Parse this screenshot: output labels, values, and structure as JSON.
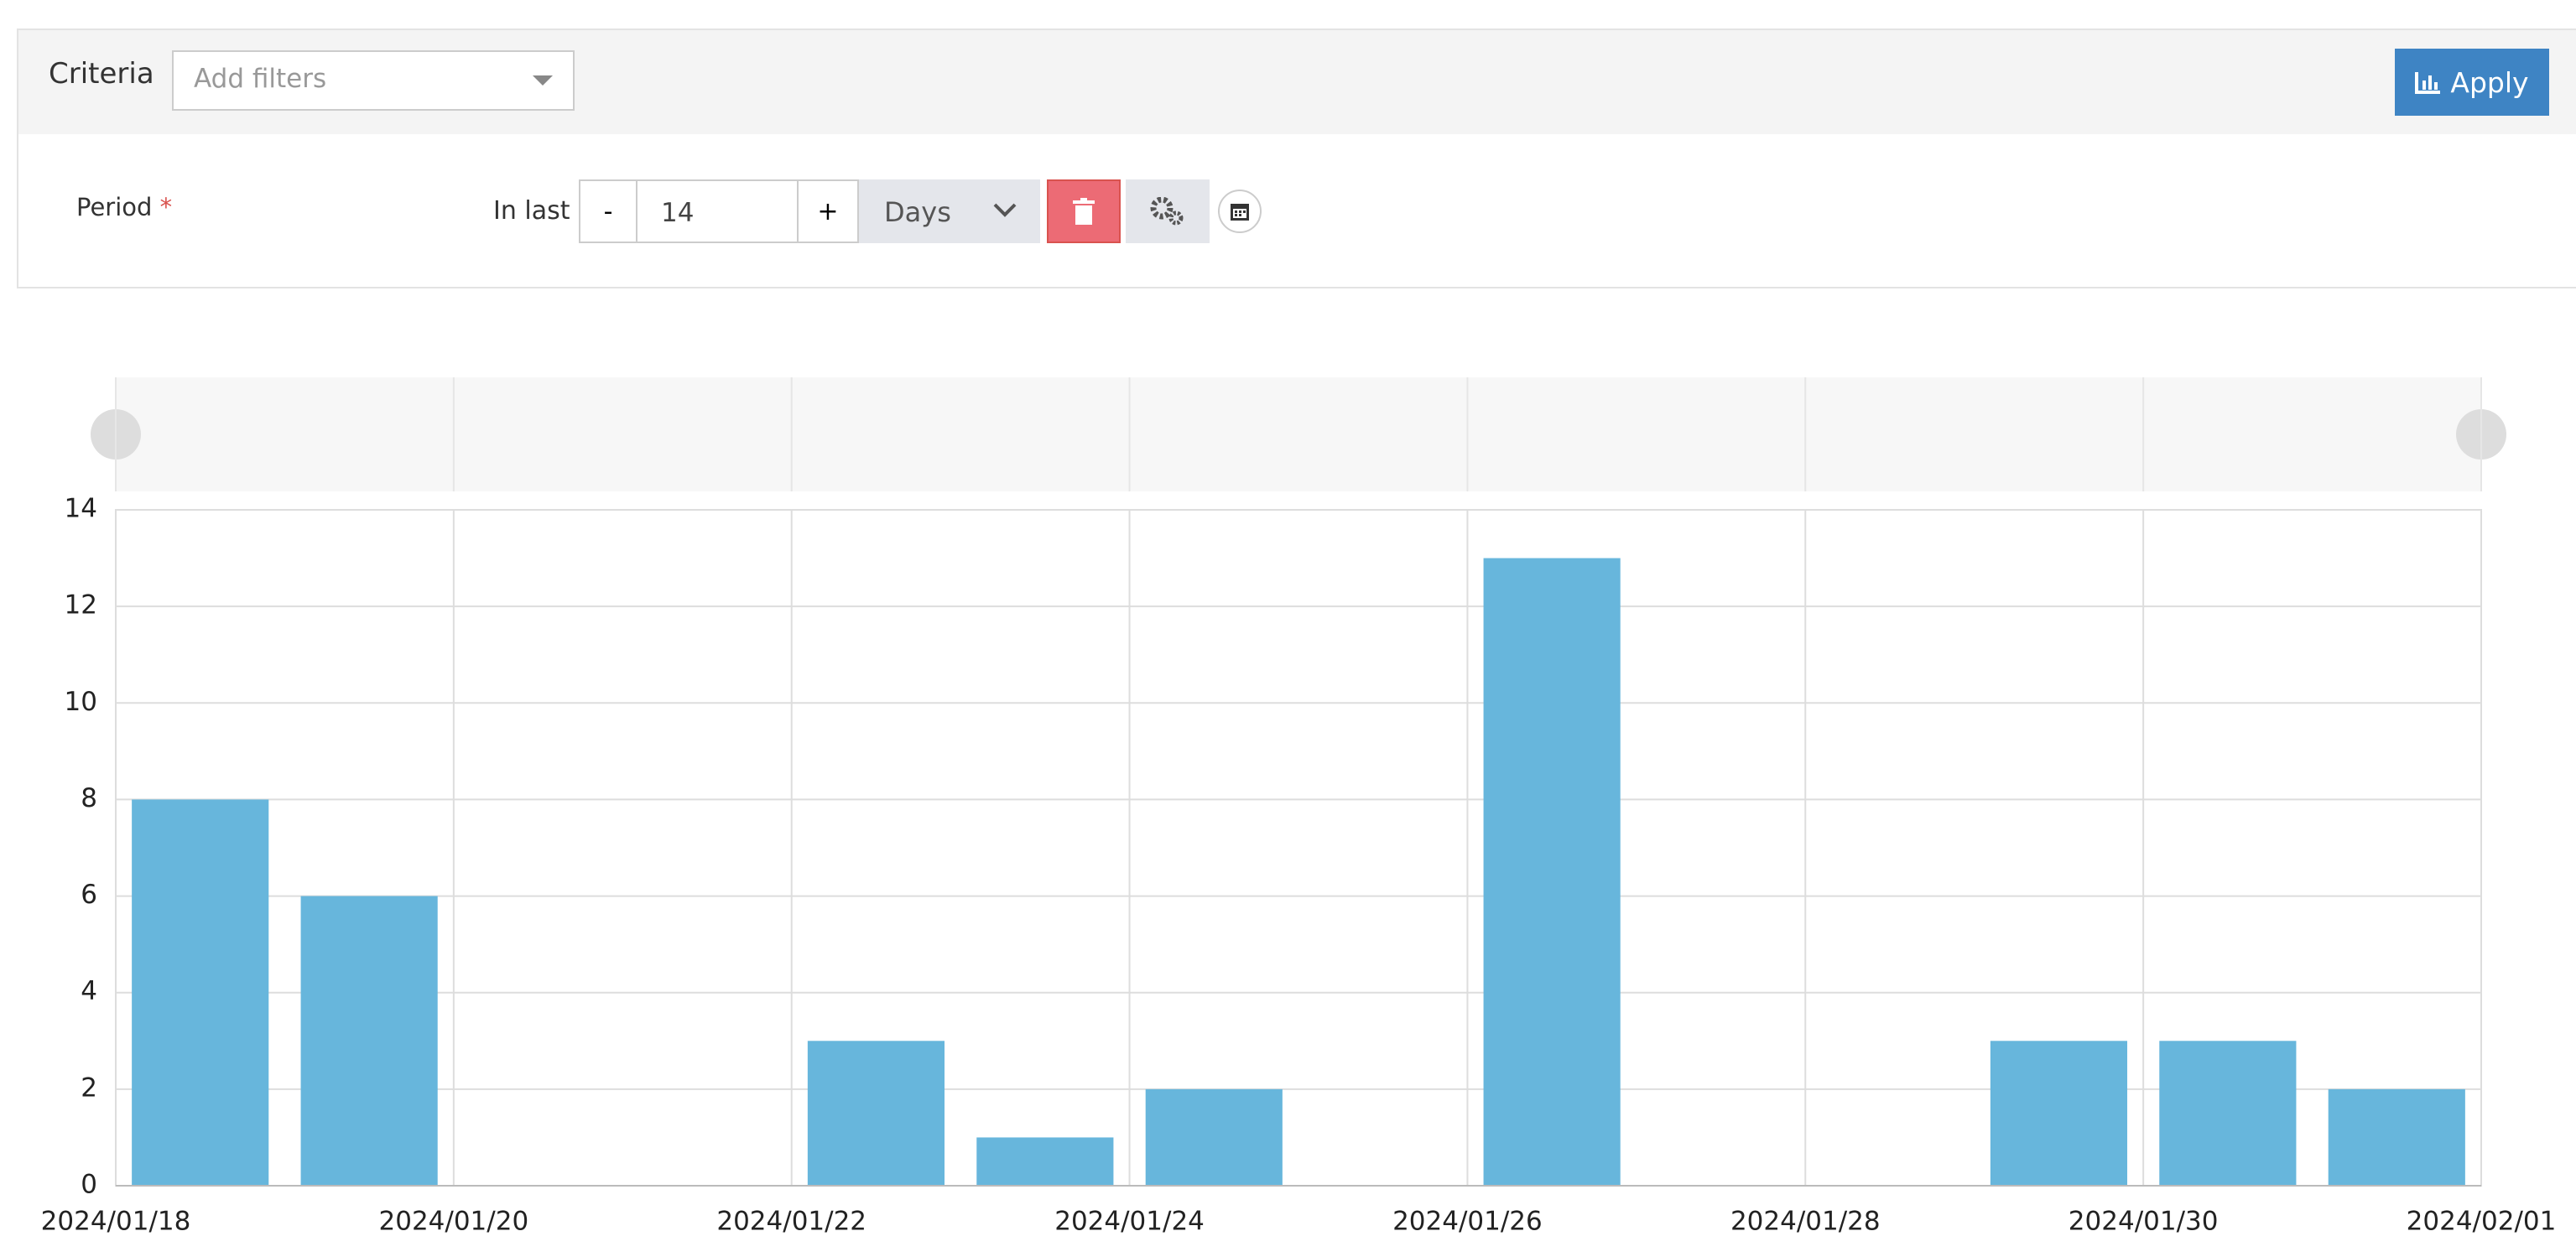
{
  "criteria": {
    "label": "Criteria",
    "filter_placeholder": "Add filters",
    "apply": "Apply"
  },
  "period": {
    "label": "Period",
    "required": "*",
    "prefix": "In last",
    "minus": "-",
    "value": "14",
    "plus": "+",
    "unit": "Days"
  },
  "chart_data": {
    "type": "bar",
    "color": "#67b6dc",
    "x": [
      "2024/01/18",
      "2024/01/19",
      "2024/01/20",
      "2024/01/21",
      "2024/01/22",
      "2024/01/23",
      "2024/01/24",
      "2024/01/25",
      "2024/01/26",
      "2024/01/27",
      "2024/01/28",
      "2024/01/29",
      "2024/01/30",
      "2024/01/31"
    ],
    "values": [
      8,
      6,
      0,
      0,
      3,
      1,
      2,
      0,
      13,
      0,
      0,
      3,
      3,
      2
    ],
    "xlim": [
      "2024/01/18",
      "2024/02/01"
    ],
    "xticks": [
      "2024/01/18",
      "2024/01/20",
      "2024/01/22",
      "2024/01/24",
      "2024/01/26",
      "2024/01/28",
      "2024/01/30",
      "2024/02/01"
    ],
    "ylim": [
      0,
      14
    ],
    "yticks": [
      0,
      2,
      4,
      6,
      8,
      10,
      12,
      14
    ],
    "grid": true
  }
}
